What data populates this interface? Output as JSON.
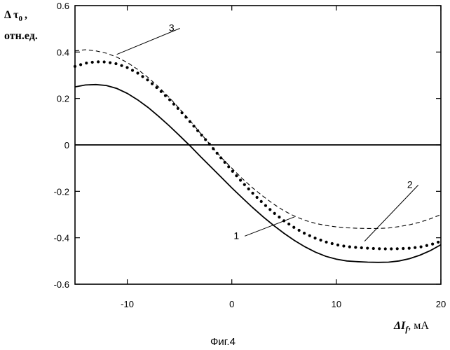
{
  "chart_data": {
    "type": "line",
    "title": "",
    "xlim": [
      -15,
      20
    ],
    "ylim": [
      -0.6,
      0.6
    ],
    "x_ticks": [
      -10,
      0,
      10,
      20
    ],
    "y_ticks": [
      0.6,
      0.4,
      0.2,
      0,
      -0.2,
      -0.4,
      -0.6
    ],
    "x_tick_labels": [
      "-10",
      "0",
      "10",
      "20"
    ],
    "y_tick_labels": [
      "0.6",
      "0.4",
      "0.2",
      "0",
      "-0.2",
      "-0.4",
      "-0.6"
    ],
    "ylabel_line1": "Δ τ",
    "ylabel_sub": "0",
    "ylabel_comma": ",",
    "ylabel_line2": "отн.ед.",
    "xlabel_var": "ΔI",
    "xlabel_sub": "f",
    "xlabel_unit": ", мА",
    "caption": "Фиг.4",
    "series": [
      {
        "name": "1",
        "style": "solid",
        "x": [
          -15,
          -14,
          -13,
          -12,
          -11,
          -10,
          -9,
          -8,
          -7,
          -6,
          -5,
          -4,
          -3,
          -2,
          -1,
          0,
          1,
          2,
          3,
          4,
          5,
          6,
          7,
          8,
          9,
          10,
          11,
          12,
          13,
          14,
          15,
          16,
          17,
          18,
          19,
          20
        ],
        "values": [
          0.25,
          0.258,
          0.26,
          0.256,
          0.243,
          0.222,
          0.194,
          0.161,
          0.123,
          0.083,
          0.04,
          -0.004,
          -0.05,
          -0.095,
          -0.14,
          -0.185,
          -0.228,
          -0.27,
          -0.31,
          -0.347,
          -0.381,
          -0.412,
          -0.439,
          -0.462,
          -0.48,
          -0.492,
          -0.5,
          -0.503,
          -0.505,
          -0.506,
          -0.505,
          -0.5,
          -0.49,
          -0.475,
          -0.455,
          -0.43
        ]
      },
      {
        "name": "2",
        "style": "dotted",
        "x": [
          -15,
          -14,
          -13,
          -12,
          -11,
          -10,
          -9,
          -8,
          -7,
          -6,
          -5,
          -4,
          -3,
          -2,
          -1,
          0,
          1,
          2,
          3,
          4,
          5,
          6,
          7,
          8,
          9,
          10,
          11,
          12,
          13,
          14,
          15,
          16,
          17,
          18,
          19,
          20
        ],
        "values": [
          0.338,
          0.352,
          0.358,
          0.357,
          0.349,
          0.333,
          0.309,
          0.278,
          0.24,
          0.197,
          0.15,
          0.1,
          0.048,
          -0.004,
          -0.058,
          -0.11,
          -0.161,
          -0.208,
          -0.252,
          -0.292,
          -0.327,
          -0.357,
          -0.382,
          -0.402,
          -0.418,
          -0.43,
          -0.438,
          -0.442,
          -0.445,
          -0.447,
          -0.448,
          -0.447,
          -0.445,
          -0.44,
          -0.43,
          -0.415
        ]
      },
      {
        "name": "3",
        "style": "dashed",
        "x": [
          -15,
          -14,
          -13,
          -12,
          -11,
          -10,
          -9,
          -8,
          -7,
          -6,
          -5,
          -4,
          -3,
          -2,
          -1,
          0,
          1,
          2,
          3,
          4,
          5,
          6,
          7,
          8,
          9,
          10,
          11,
          12,
          13,
          14,
          15,
          16,
          17,
          18,
          19,
          20
        ],
        "values": [
          0.405,
          0.41,
          0.405,
          0.395,
          0.378,
          0.355,
          0.325,
          0.29,
          0.25,
          0.205,
          0.156,
          0.105,
          0.05,
          -0.002,
          -0.055,
          -0.1,
          -0.145,
          -0.185,
          -0.222,
          -0.255,
          -0.284,
          -0.307,
          -0.325,
          -0.338,
          -0.347,
          -0.353,
          -0.357,
          -0.359,
          -0.36,
          -0.36,
          -0.358,
          -0.352,
          -0.344,
          -0.333,
          -0.318,
          -0.3
        ]
      },
      {
        "name": "zero",
        "style": "solid",
        "x": [
          -15,
          20
        ],
        "values": [
          0,
          0
        ]
      }
    ],
    "annotations": [
      {
        "label": "1",
        "series": "1",
        "point_x": 6,
        "point_y": -0.31,
        "text_x": 0.7,
        "text_y": -0.405
      },
      {
        "label": "2",
        "series": "2",
        "point_x": 12.7,
        "point_y": -0.415,
        "text_x": 17.3,
        "text_y": -0.185
      },
      {
        "label": "3",
        "series": "3",
        "point_x": -11,
        "point_y": 0.39,
        "text_x": -5.5,
        "text_y": 0.49
      }
    ]
  }
}
